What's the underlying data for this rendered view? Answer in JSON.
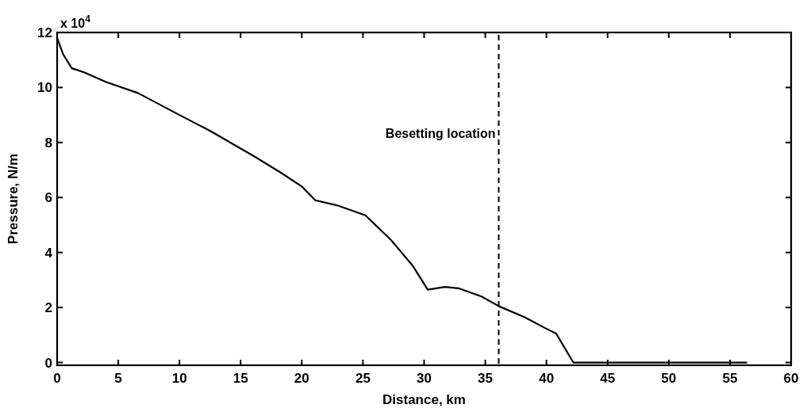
{
  "chart_data": {
    "type": "line",
    "xlabel": "Distance, km",
    "ylabel": "Pressure, N/m",
    "annotations": [
      "x 10$^{4}$"
    ],
    "xlim": [
      0,
      60
    ],
    "xticks": [
      0,
      5,
      10,
      15,
      20,
      25,
      30,
      35,
      40,
      45,
      50,
      55,
      60
    ],
    "ylim": [
      -0.1,
      12
    ],
    "yticks": [
      0,
      2,
      4,
      6,
      8,
      10,
      12
    ],
    "marker": "none",
    "line_style": "solid",
    "ref_lines": [
      {
        "axis": "x",
        "value": 36.1,
        "label": "Besetting location",
        "color": "#000000",
        "line_style": "dashed"
      }
    ],
    "series": [
      {
        "color": "#000000",
        "x": [
          0,
          0.5,
          1.2,
          2.2,
          4.0,
          6.6,
          10.0,
          12.6,
          16.1,
          18.3,
          20.0,
          21.1,
          23.0,
          25.2,
          27.3,
          29.1,
          30.3,
          31.7,
          32.8,
          34.7,
          36.1,
          38.2,
          39.9,
          40.8,
          42.2,
          56.4
        ],
        "values": [
          11.8,
          11.2,
          10.7,
          10.55,
          10.2,
          9.8,
          9.0,
          8.4,
          7.5,
          6.9,
          6.4,
          5.9,
          5.7,
          5.35,
          4.45,
          3.5,
          2.65,
          2.75,
          2.7,
          2.4,
          2.05,
          1.65,
          1.25,
          1.05,
          0,
          0
        ]
      }
    ]
  }
}
